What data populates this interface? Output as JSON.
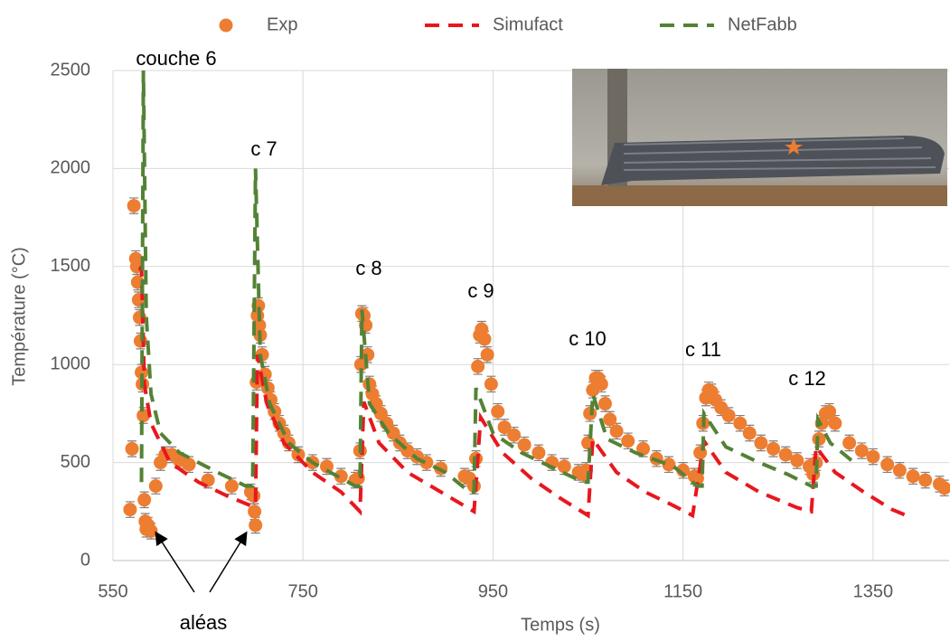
{
  "chart_data": {
    "type": "scatter",
    "xlabel": "Temps  (s)",
    "ylabel": "Température (°C)",
    "xlim": [
      550,
      1430
    ],
    "ylim": [
      0,
      2500
    ],
    "xticks": [
      550,
      750,
      950,
      1150,
      1350
    ],
    "yticks": [
      0,
      500,
      1000,
      1500,
      2000,
      2500
    ],
    "grid": true,
    "legend": "top",
    "annotations": [
      "couche 6",
      "c 7",
      "c 8",
      "c 9",
      "c 10",
      "c 11",
      "c 12",
      "aléas"
    ],
    "series": [
      {
        "name": "Exp",
        "mode": "markers",
        "color": "#ED7D31",
        "error": 40,
        "x": [
          568,
          570,
          572,
          574,
          575,
          576,
          577,
          578,
          579,
          580,
          581,
          582,
          583,
          584,
          585,
          587,
          590,
          595,
          600,
          605,
          612,
          620,
          630,
          650,
          675,
          695,
          698,
          699,
          700,
          701,
          702,
          703,
          704,
          705,
          707,
          710,
          713,
          716,
          720,
          725,
          730,
          735,
          745,
          760,
          775,
          790,
          805,
          808,
          810,
          811,
          812,
          814,
          816,
          818,
          820,
          823,
          827,
          832,
          838,
          845,
          852,
          860,
          870,
          880,
          895,
          920,
          925,
          930,
          932,
          934,
          936,
          938,
          941,
          944,
          948,
          955,
          962,
          972,
          983,
          998,
          1012,
          1025,
          1040,
          1045,
          1048,
          1050,
          1052,
          1055,
          1058,
          1061,
          1064,
          1068,
          1073,
          1080,
          1092,
          1108,
          1122,
          1135,
          1150,
          1162,
          1165,
          1168,
          1171,
          1174,
          1177,
          1180,
          1184,
          1190,
          1198,
          1210,
          1220,
          1232,
          1245,
          1258,
          1270,
          1283,
          1287,
          1290,
          1293,
          1296,
          1300,
          1304,
          1310,
          1325,
          1338,
          1350,
          1365,
          1378,
          1392,
          1405,
          1420,
          1425
        ],
        "values": [
          260,
          570,
          1810,
          1540,
          1500,
          1420,
          1330,
          1240,
          1120,
          960,
          900,
          740,
          310,
          200,
          160,
          180,
          150,
          380,
          500,
          540,
          540,
          510,
          490,
          410,
          380,
          350,
          330,
          250,
          180,
          910,
          1250,
          1300,
          1200,
          1150,
          1050,
          950,
          880,
          820,
          760,
          700,
          650,
          600,
          540,
          500,
          480,
          430,
          410,
          420,
          560,
          1000,
          1260,
          1250,
          1200,
          1050,
          900,
          850,
          800,
          750,
          700,
          650,
          600,
          560,
          530,
          500,
          470,
          430,
          420,
          380,
          520,
          990,
          1150,
          1180,
          1130,
          1050,
          900,
          760,
          680,
          640,
          590,
          550,
          500,
          480,
          450,
          440,
          460,
          600,
          750,
          870,
          930,
          930,
          900,
          800,
          720,
          660,
          610,
          570,
          520,
          490,
          460,
          430,
          420,
          550,
          700,
          830,
          870,
          860,
          820,
          780,
          740,
          700,
          650,
          600,
          570,
          540,
          510,
          480,
          440,
          500,
          620,
          700,
          750,
          760,
          700,
          600,
          560,
          530,
          490,
          460,
          430,
          410,
          390,
          370
        ]
      },
      {
        "name": "Simufact",
        "mode": "dashed",
        "color": "#E8171E",
        "x": [
          578,
          580,
          583,
          590,
          610,
          640,
          670,
          695,
          700,
          702,
          712,
          730,
          760,
          790,
          810,
          814,
          830,
          860,
          895,
          930,
          937,
          960,
          990,
          1020,
          1050,
          1055,
          1080,
          1110,
          1140,
          1160,
          1172,
          1195,
          1230,
          1270,
          1285,
          1290,
          1310,
          1340,
          1370,
          1390
        ],
        "values": [
          1480,
          1500,
          900,
          700,
          500,
          400,
          330,
          280,
          280,
          1050,
          800,
          600,
          450,
          350,
          250,
          810,
          600,
          450,
          350,
          250,
          730,
          550,
          420,
          320,
          230,
          620,
          450,
          350,
          280,
          230,
          610,
          450,
          350,
          270,
          250,
          580,
          450,
          350,
          260,
          220
        ]
      },
      {
        "name": "NetFabb",
        "mode": "dashed",
        "color": "#548235",
        "x": [
          580,
          582,
          585,
          590,
          600,
          620,
          660,
          690,
          697,
          700,
          705,
          715,
          735,
          760,
          790,
          805,
          810,
          812,
          820,
          840,
          870,
          900,
          925,
          930,
          932,
          950,
          980,
          1010,
          1045,
          1050,
          1055,
          1070,
          1100,
          1140,
          1165,
          1170,
          1172,
          1195,
          1230,
          1260,
          1285,
          1290,
          1292,
          1305,
          1330
        ],
        "values": [
          400,
          2500,
          1250,
          850,
          650,
          550,
          450,
          380,
          380,
          2000,
          1050,
          800,
          600,
          500,
          420,
          380,
          380,
          1280,
          800,
          650,
          520,
          450,
          350,
          350,
          880,
          650,
          550,
          480,
          400,
          400,
          850,
          620,
          550,
          480,
          380,
          380,
          750,
          580,
          500,
          440,
          380,
          380,
          720,
          600,
          500
        ]
      }
    ]
  }
}
